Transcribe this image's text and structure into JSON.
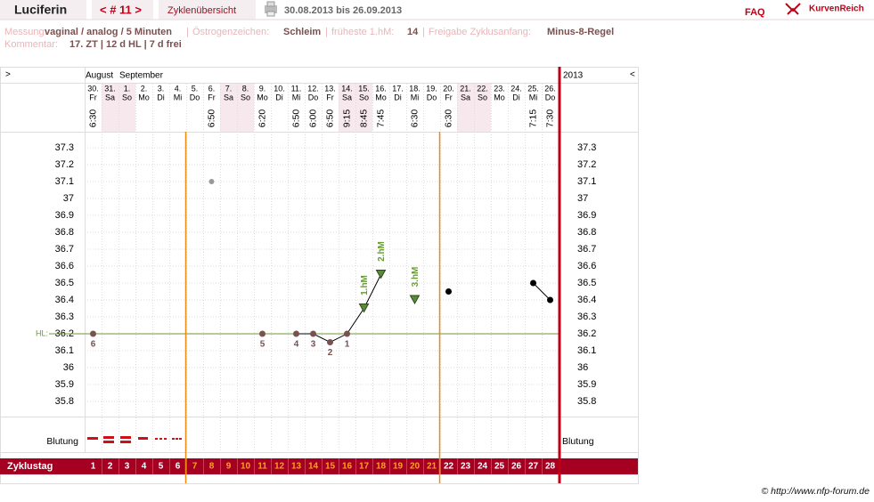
{
  "header": {
    "name": "Luciferin",
    "cycle_nav": "< # 11 >",
    "overview": "Zyklenübersicht",
    "period": "30.08.2013 bis 26.09.2013",
    "faq": "FAQ",
    "brand": "KurvenReich"
  },
  "info": {
    "measure_label": "Messung:",
    "measure": "vaginal / analog / 5 Minuten",
    "estrogen_label": "Östrogenzeichen:",
    "estrogen": "Schleim",
    "earliest_label": "früheste 1.hM:",
    "earliest": "14",
    "release_label": "Freigabe Zyklusanfang:",
    "release": "Minus-8-Regel",
    "comment_label": "Kommentar:",
    "comment": "17. ZT | 12 d HL | 7 d frei"
  },
  "chart_data": {
    "type": "line",
    "left_arrow": ">",
    "right_arrow": "<",
    "months": [
      "August",
      "September"
    ],
    "year": "2013",
    "days": [
      1,
      2,
      3,
      4,
      5,
      6,
      7,
      8,
      9,
      10,
      11,
      12,
      13,
      14,
      15,
      16,
      17,
      18,
      19,
      20,
      21,
      22,
      23,
      24,
      25,
      26,
      27,
      28
    ],
    "dates": [
      "30.",
      "31.",
      "1.",
      "2.",
      "3.",
      "4.",
      "5.",
      "6.",
      "7.",
      "8.",
      "9.",
      "10.",
      "11.",
      "12.",
      "13.",
      "14.",
      "15.",
      "16.",
      "17.",
      "18.",
      "19.",
      "20.",
      "21.",
      "22.",
      "23.",
      "24.",
      "25.",
      "26."
    ],
    "weekdays": [
      "Fr",
      "Sa",
      "So",
      "Mo",
      "Di",
      "Mi",
      "Do",
      "Fr",
      "Sa",
      "So",
      "Mo",
      "Di",
      "Mi",
      "Do",
      "Fr",
      "Sa",
      "So",
      "Mo",
      "Di",
      "Mi",
      "Do",
      "Fr",
      "Sa",
      "So",
      "Mo",
      "Di",
      "Mi",
      "Do"
    ],
    "times": [
      "6:30",
      null,
      null,
      null,
      null,
      null,
      null,
      "6:50",
      null,
      null,
      "6:20",
      null,
      "6:50",
      "6:00",
      "6:50",
      "9:15",
      "8:45",
      "7:45",
      null,
      "6:30",
      null,
      "6:30",
      null,
      null,
      null,
      null,
      "7:15",
      "7:30"
    ],
    "values": [
      36.2,
      null,
      null,
      null,
      null,
      null,
      null,
      null,
      null,
      null,
      36.2,
      null,
      36.2,
      36.2,
      36.15,
      36.2,
      36.35,
      36.55,
      null,
      36.4,
      null,
      36.45,
      null,
      null,
      null,
      null,
      36.5,
      36.4
    ],
    "excluded_values": [
      null,
      null,
      null,
      null,
      null,
      null,
      null,
      37.1,
      null,
      null,
      null,
      null,
      null,
      null,
      null,
      null,
      null,
      null,
      null,
      null,
      null,
      null,
      null,
      null,
      null,
      null,
      null,
      null
    ],
    "count_labels": [
      6,
      null,
      null,
      null,
      null,
      null,
      null,
      null,
      null,
      null,
      5,
      null,
      4,
      3,
      2,
      1,
      null,
      null,
      null,
      null,
      null,
      null,
      null,
      null,
      null,
      null,
      null,
      null
    ],
    "hm_labels": [
      null,
      null,
      null,
      null,
      null,
      null,
      null,
      null,
      null,
      null,
      null,
      null,
      null,
      null,
      null,
      null,
      "1.hM",
      "2.hM",
      null,
      "3.hM",
      null,
      null,
      null,
      null,
      null,
      null,
      null,
      null
    ],
    "coverline": 36.2,
    "coverline_label": "HL:",
    "infertile_until_day": 6,
    "fertile_until_day": 21,
    "ylim": [
      35.7,
      37.4
    ],
    "yticks": [
      37.3,
      37.2,
      37.1,
      37,
      36.9,
      36.8,
      36.7,
      36.6,
      36.5,
      36.4,
      36.3,
      36.2,
      36.1,
      36,
      35.9,
      35.8
    ],
    "bleeding_label": "Blutung",
    "cycle_day_label": "Zyklustag"
  },
  "footer": "© http://www.nfp-forum.de"
}
